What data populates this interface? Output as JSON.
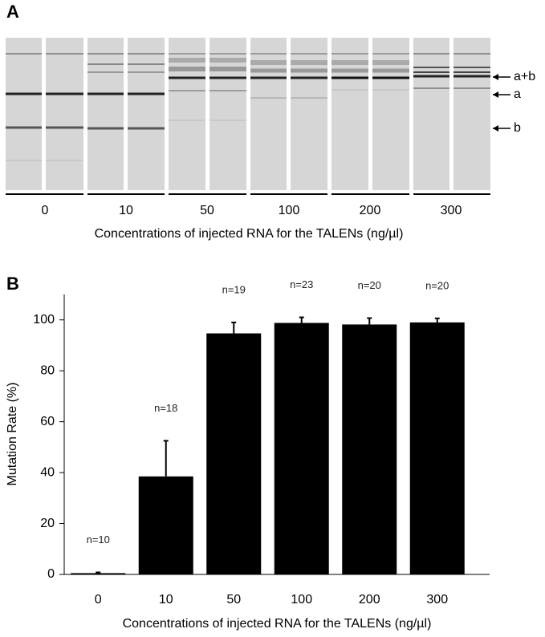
{
  "panel_a": {
    "label": "A",
    "lane_groups": [
      "0",
      "10",
      "50",
      "100",
      "200",
      "300"
    ],
    "x_label": "Concentrations of injected RNA for the TALENs (ng/µl)",
    "band_labels": [
      "a+b",
      "a",
      "b"
    ]
  },
  "chart_data": {
    "type": "bar",
    "panel_label": "B",
    "categories": [
      "0",
      "10",
      "50",
      "100",
      "200",
      "300"
    ],
    "values": [
      0.5,
      38.5,
      94.7,
      98.8,
      98.2,
      99
    ],
    "errors": [
      0.3,
      14,
      4.3,
      2.2,
      2.5,
      1.6
    ],
    "bar_annotations": [
      "n=10",
      "n=18",
      "n=19",
      "n=23",
      "n=20",
      "n=20"
    ],
    "color": "#000000",
    "x_label": "Concentrations of injected RNA for the TALENs (ng/µl)",
    "y_label": "Mutation Rate (%)",
    "ylim": [
      0,
      110
    ],
    "yticks": [
      0,
      20,
      40,
      60,
      80,
      100
    ],
    "grid": false
  }
}
